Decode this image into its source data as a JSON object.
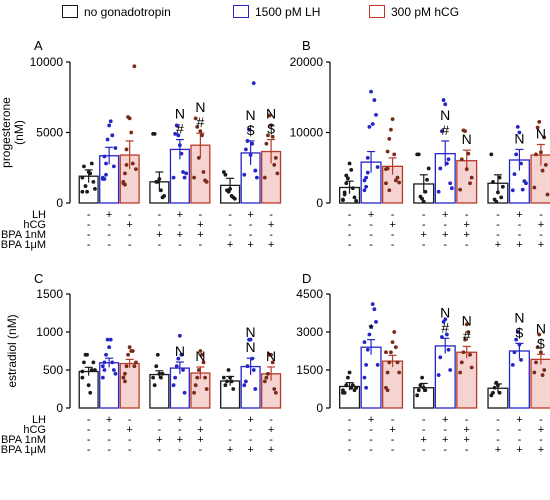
{
  "legend": {
    "items": [
      {
        "label": "no gonadotropin",
        "color": "#1a1a1a"
      },
      {
        "label": "1500 pM LH",
        "color": "#2525c8"
      },
      {
        "label": "300 pM hCG",
        "color": "#b83a2a"
      }
    ]
  },
  "colors": {
    "control": "#1a1a1a",
    "lh": "#2525c8",
    "hcg": "#b83a2a",
    "hcg_fill": "#f4d3d0"
  },
  "treatment_rows": {
    "labels": [
      "LH",
      "hCG",
      "BPA 1nM",
      "BPA 1μM"
    ],
    "symbols": [
      [
        "-",
        "+",
        "-",
        "-",
        "+",
        "-",
        "-",
        "+",
        "-"
      ],
      [
        "-",
        "-",
        "+",
        "-",
        "-",
        "+",
        "-",
        "-",
        "+"
      ],
      [
        "-",
        "-",
        "-",
        "+",
        "+",
        "+",
        "-",
        "-",
        "-"
      ],
      [
        "-",
        "-",
        "-",
        "-",
        "-",
        "-",
        "+",
        "+",
        "+"
      ]
    ]
  },
  "chart_data": [
    {
      "panel": "A",
      "type": "bar",
      "ylabel": "progesterone\n(nM)",
      "ylim": [
        0,
        10000
      ],
      "yticks": [
        "0",
        "5000",
        "10000"
      ],
      "ytick_values": [
        0,
        5000,
        10000
      ],
      "groups": [
        "control",
        "BPA 1nM",
        "BPA 1μM"
      ],
      "series": [
        "no gonadotropin",
        "1500 pM LH",
        "300 pM hCG"
      ],
      "values": [
        1900,
        3350,
        3400,
        1500,
        3800,
        4100,
        1250,
        3550,
        3650
      ],
      "errors": [
        450,
        600,
        1000,
        700,
        700,
        850,
        500,
        850,
        850
      ],
      "annotations": [
        "",
        "",
        "",
        "",
        "N\n#",
        "N\n#",
        "",
        "N\n$",
        "N\n$"
      ],
      "points": [
        [
          1800,
          2600,
          1200,
          800,
          2200,
          2100,
          2800,
          1500,
          1000,
          800
        ],
        [
          1800,
          3300,
          2800,
          4500,
          5500,
          5800,
          4800,
          2600,
          3900,
          1700,
          1700,
          2000
        ],
        [
          1500,
          2100,
          2700,
          6100,
          6000,
          5000,
          2800,
          9700,
          2400,
          1400,
          1300,
          3800
        ],
        [
          4900,
          4900,
          1500,
          1500,
          1700,
          900,
          400,
          500
        ],
        [
          1800,
          4900,
          5500,
          4800,
          4100,
          3500,
          2200,
          1800,
          2100
        ],
        [
          1800,
          6000,
          5400,
          3200,
          5100,
          4800,
          2200,
          1600,
          1500
        ],
        [
          2200,
          2000,
          900,
          800,
          1000,
          500,
          400,
          300
        ],
        [
          2000,
          3800,
          4400,
          5200,
          3400,
          4200,
          8500,
          2300,
          1800
        ],
        [
          1800,
          4200,
          4800,
          6200,
          5500,
          4700,
          2700,
          3200,
          2100
        ]
      ]
    },
    {
      "panel": "B",
      "type": "bar",
      "ylabel": "",
      "ylim": [
        0,
        20000
      ],
      "yticks": [
        "0",
        "10000",
        "20000"
      ],
      "ytick_values": [
        0,
        10000,
        20000
      ],
      "groups": [
        "control",
        "BPA 1nM",
        "BPA 1μM"
      ],
      "series": [
        "no gonadotropin",
        "1500 pM LH",
        "300 pM hCG"
      ],
      "values": [
        2200,
        5800,
        5200,
        2700,
        7000,
        6000,
        2800,
        6100,
        6800
      ],
      "errors": [
        900,
        1500,
        1200,
        1300,
        1800,
        1500,
        1200,
        1500,
        1500
      ],
      "annotations": [
        "",
        "",
        "",
        "",
        "N\n#",
        "N",
        "",
        "N",
        "N"
      ],
      "points": [
        [
          400,
          1500,
          2800,
          3500,
          5600,
          4700,
          2100,
          800,
          300,
          500,
          1200,
          3900
        ],
        [
          1800,
          3600,
          6400,
          10800,
          15800,
          11200,
          14600,
          12500,
          5100,
          3200,
          2300,
          4300
        ],
        [
          2800,
          4900,
          9100,
          10400,
          11900,
          6900,
          3200,
          3600,
          2900,
          4800,
          7300,
          1800
        ],
        [
          6900,
          6900,
          900,
          600,
          200,
          1600,
          3300,
          4900
        ],
        [
          1600,
          4900,
          10200,
          14600,
          14000,
          5600,
          6200,
          2800,
          2100
        ],
        [
          1900,
          6200,
          10300,
          10200,
          4800,
          7000,
          2800,
          3600
        ],
        [
          6900,
          3000,
          500,
          200,
          1500,
          3600,
          800,
          2300
        ],
        [
          1800,
          4100,
          6900,
          10800,
          10000,
          5600,
          1900,
          3100,
          2800
        ],
        [
          2200,
          6900,
          10700,
          11500,
          7200,
          4600,
          9300,
          5400,
          1200
        ]
      ]
    },
    {
      "panel": "C",
      "type": "bar",
      "ylabel": "estradiol (nM)",
      "ylim": [
        0,
        1500
      ],
      "yticks": [
        "0",
        "500",
        "1000",
        "1500"
      ],
      "ytick_values": [
        0,
        500,
        1000,
        1500
      ],
      "groups": [
        "control",
        "BPA 1nM",
        "BPA 1μM"
      ],
      "series": [
        "no gonadotropin",
        "1500 pM LH",
        "300 pM hCG"
      ],
      "values": [
        480,
        595,
        585,
        440,
        525,
        460,
        355,
        545,
        450
      ],
      "errors": [
        55,
        60,
        55,
        50,
        80,
        80,
        60,
        110,
        90
      ],
      "annotations": [
        "",
        "",
        "",
        "",
        "N",
        "N",
        "",
        "N\nN",
        "N"
      ],
      "points": [
        [
          400,
          600,
          700,
          700,
          300,
          200,
          500,
          600,
          500,
          480
        ],
        [
          400,
          600,
          700,
          900,
          800,
          900,
          600,
          500,
          450,
          550,
          500
        ],
        [
          400,
          450,
          550,
          700,
          800,
          750,
          750,
          550,
          600,
          400,
          350
        ],
        [
          400,
          300,
          550,
          700,
          450,
          400,
          450
        ],
        [
          300,
          400,
          550,
          650,
          950,
          700,
          500,
          200
        ],
        [
          200,
          300,
          400,
          500,
          750,
          700,
          600,
          400,
          250
        ],
        [
          400,
          300,
          350,
          500,
          400,
          350,
          250
        ],
        [
          300,
          350,
          550,
          900,
          900,
          650,
          500,
          250
        ],
        [
          350,
          400,
          450,
          700,
          700,
          600,
          250,
          200
        ]
      ]
    },
    {
      "panel": "D",
      "type": "bar",
      "ylabel": "",
      "ylim": [
        0,
        4500
      ],
      "yticks": [
        "0",
        "1500",
        "3000",
        "4500"
      ],
      "ytick_values": [
        0,
        1500,
        3000,
        4500
      ],
      "groups": [
        "control",
        "BPA 1nM",
        "BPA 1μM"
      ],
      "series": [
        "no gonadotropin",
        "1500 pM LH",
        "300 pM hCG"
      ],
      "values": [
        850,
        2400,
        1850,
        800,
        2450,
        2200,
        780,
        2250,
        1920
      ],
      "errors": [
        150,
        300,
        230,
        170,
        300,
        230,
        170,
        300,
        200
      ],
      "annotations": [
        "",
        "*",
        "",
        "",
        "N\n#",
        "N\n#",
        "",
        "N\n$",
        "N\n$"
      ],
      "points": [
        [
          700,
          600,
          900,
          1200,
          1400,
          800,
          900,
          700,
          800,
          600
        ],
        [
          1200,
          1700,
          2300,
          2900,
          3200,
          4100,
          3900,
          3400,
          1700,
          2600,
          800
        ],
        [
          800,
          1400,
          1800,
          2200,
          2600,
          3000,
          2400,
          1800,
          1400,
          2200,
          700
        ],
        [
          500,
          700,
          900,
          1200,
          800,
          700
        ],
        [
          1300,
          2000,
          2800,
          3400,
          3500,
          2900,
          2300,
          1500
        ],
        [
          1400,
          1800,
          2200,
          2700,
          3300,
          3000,
          2100,
          1600
        ],
        [
          500,
          600,
          800,
          1000,
          900,
          600
        ],
        [
          1700,
          2200,
          2700,
          3000,
          2500,
          1900
        ],
        [
          1400,
          1800,
          2400,
          2900,
          2200,
          1300,
          1500
        ]
      ]
    }
  ]
}
